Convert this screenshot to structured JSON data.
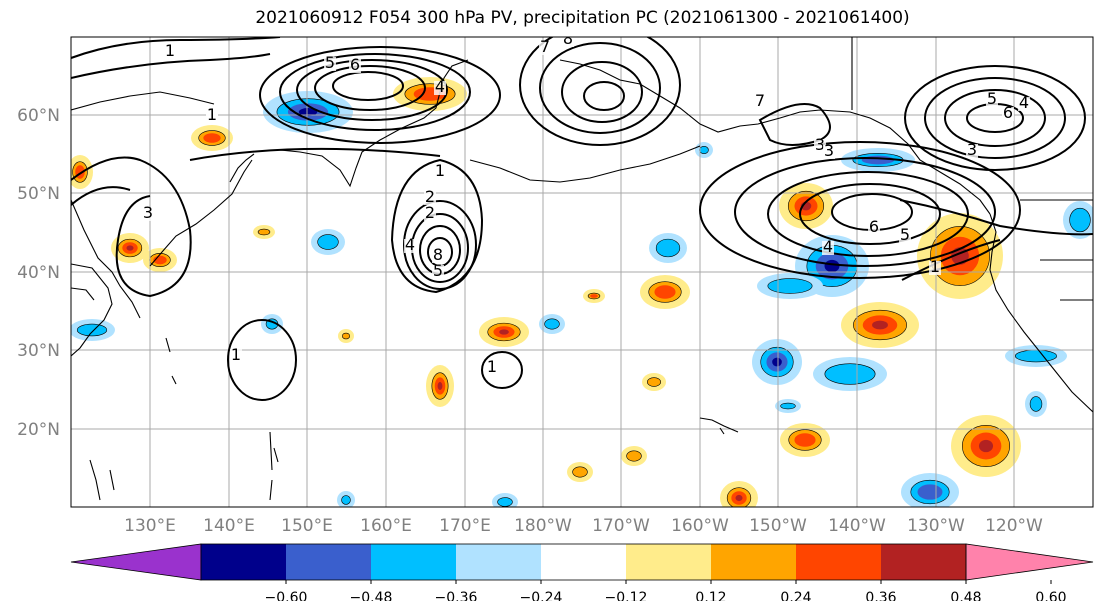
{
  "title": "2021060912 F054 300 hPa PV, precipitation PC (2021061300 - 2021061400)",
  "lat_labels": [
    "60°N",
    "50°N",
    "40°N",
    "30°N",
    "20°N"
  ],
  "lon_labels": [
    "130°E",
    "140°E",
    "150°E",
    "160°E",
    "170°E",
    "180°W",
    "170°W",
    "160°W",
    "150°W",
    "140°W",
    "130°W",
    "120°W"
  ],
  "colorbar": {
    "colors": [
      "#9a32cd",
      "#00008b",
      "#3a5fcd",
      "#00bfff",
      "#b0e2ff",
      "#ffffff",
      "#ffec8b",
      "#ffa500",
      "#ff4500",
      "#b22222",
      "#ff82ab"
    ],
    "tick_labels": [
      "−0.60",
      "−0.48",
      "−0.36",
      "−0.24",
      "−0.12",
      "0.12",
      "0.24",
      "0.36",
      "0.48",
      "0.60"
    ]
  },
  "contour_labels": [
    "1",
    "5",
    "6",
    "7",
    "8",
    "4",
    "3",
    "2",
    "1",
    "1",
    "1",
    "3",
    "2",
    "4",
    "5",
    "8",
    "6",
    "5",
    "4",
    "3",
    "1",
    "1",
    "7",
    "3",
    "6",
    "5",
    "4",
    "1"
  ],
  "blob_colors": {
    "neg_light": "#b0e2ff",
    "neg": "#00bfff",
    "neg_strong": "#3a5fcd",
    "neg_max": "#00008b",
    "pos_light": "#ffec8b",
    "pos": "#ffa500",
    "pos_strong": "#ff4500",
    "pos_max": "#b22222"
  }
}
